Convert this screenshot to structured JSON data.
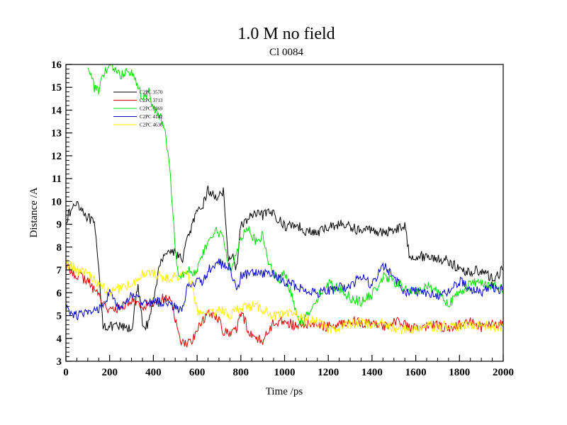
{
  "chart_data": {
    "type": "line",
    "title": "1.0 M no field",
    "subtitle": "Cl 0084",
    "xlabel": "Time /ps",
    "ylabel": "Distance /A",
    "xlim": [
      0,
      2000
    ],
    "ylim": [
      3,
      16
    ],
    "xticks": [
      0,
      200,
      400,
      600,
      800,
      1000,
      1200,
      1400,
      1600,
      1800,
      2000
    ],
    "yticks": [
      3,
      4,
      5,
      6,
      7,
      8,
      9,
      10,
      11,
      12,
      13,
      14,
      15,
      16
    ],
    "grid": false,
    "legend_position": "top-left",
    "series": [
      {
        "name": "C2PC 3570",
        "color": "#000000",
        "x": [
          0,
          50,
          100,
          130,
          150,
          170,
          200,
          250,
          300,
          330,
          350,
          380,
          420,
          450,
          500,
          530,
          560,
          590,
          620,
          650,
          680,
          720,
          740,
          760,
          780,
          800,
          850,
          900,
          950,
          1000,
          1050,
          1100,
          1150,
          1200,
          1250,
          1300,
          1350,
          1400,
          1450,
          1500,
          1550,
          1570,
          1600,
          1650,
          1700,
          1750,
          1800,
          1850,
          1900,
          1950,
          2000
        ],
        "y": [
          9.2,
          10.0,
          9.3,
          9.0,
          7.0,
          4.6,
          4.5,
          4.5,
          4.4,
          6.3,
          4.6,
          4.6,
          6.8,
          7.8,
          7.8,
          7.4,
          8.5,
          9.3,
          9.7,
          10.5,
          10.2,
          10.4,
          7.6,
          7.6,
          7.1,
          8.9,
          9.4,
          9.4,
          9.5,
          8.9,
          9.0,
          8.7,
          8.6,
          8.9,
          9.0,
          8.9,
          8.7,
          8.8,
          8.6,
          8.8,
          8.9,
          7.7,
          7.6,
          7.6,
          7.5,
          7.4,
          7.0,
          6.9,
          7.0,
          6.6,
          7.0
        ]
      },
      {
        "name": "C2PC 3713",
        "color": "#dd0000",
        "x": [
          0,
          50,
          100,
          150,
          200,
          250,
          300,
          350,
          400,
          450,
          480,
          500,
          520,
          550,
          580,
          620,
          650,
          680,
          700,
          720,
          750,
          780,
          800,
          850,
          900,
          950,
          1000,
          1050,
          1100,
          1150,
          1200,
          1250,
          1300,
          1350,
          1400,
          1450,
          1500,
          1550,
          1600,
          1650,
          1700,
          1750,
          1800,
          1850,
          1900,
          1950,
          2000
        ],
        "y": [
          7.1,
          6.8,
          6.5,
          5.9,
          5.2,
          5.3,
          5.7,
          5.4,
          5.6,
          5.8,
          5.7,
          4.8,
          4.0,
          3.7,
          4.0,
          4.7,
          5.1,
          5.0,
          4.9,
          4.3,
          4.2,
          4.4,
          5.1,
          4.1,
          3.9,
          4.7,
          4.8,
          4.5,
          4.6,
          4.6,
          4.5,
          4.6,
          4.8,
          4.7,
          4.6,
          4.5,
          4.8,
          4.6,
          4.4,
          4.5,
          4.6,
          4.4,
          4.6,
          4.7,
          4.5,
          4.6,
          4.6
        ]
      },
      {
        "name": "C2PC 3869",
        "color": "#00dd00",
        "x": [
          100,
          130,
          150,
          170,
          200,
          230,
          250,
          280,
          300,
          330,
          350,
          380,
          400,
          430,
          450,
          470,
          490,
          500,
          510,
          530,
          560,
          590,
          620,
          650,
          680,
          700,
          720,
          740,
          760,
          800,
          830,
          870,
          900,
          930,
          970,
          1000,
          1030,
          1050,
          1080,
          1100,
          1150,
          1200,
          1250,
          1300,
          1350,
          1400,
          1450,
          1500,
          1550,
          1600,
          1650,
          1700,
          1750,
          1800,
          1850,
          1900,
          1950,
          2000
        ],
        "y": [
          16.0,
          15.0,
          14.8,
          15.5,
          16.0,
          15.8,
          15.5,
          15.8,
          15.7,
          15.0,
          14.5,
          14.8,
          14.0,
          13.8,
          13.2,
          12.0,
          9.5,
          8.0,
          7.0,
          6.8,
          7.1,
          6.8,
          7.5,
          8.2,
          8.7,
          8.6,
          8.4,
          7.4,
          7.1,
          8.4,
          8.9,
          8.2,
          8.5,
          7.2,
          6.5,
          6.8,
          6.0,
          5.3,
          4.6,
          5.0,
          5.8,
          6.4,
          6.2,
          5.8,
          5.6,
          5.9,
          6.7,
          6.5,
          6.2,
          6.0,
          6.3,
          6.1,
          5.5,
          6.0,
          6.4,
          6.5,
          6.3,
          6.1
        ]
      },
      {
        "name": "C2PC 4142",
        "color": "#0000cc",
        "x": [
          0,
          50,
          100,
          150,
          200,
          250,
          300,
          350,
          400,
          450,
          500,
          530,
          560,
          600,
          630,
          660,
          700,
          750,
          780,
          800,
          830,
          850,
          900,
          950,
          1000,
          1050,
          1100,
          1150,
          1200,
          1250,
          1300,
          1350,
          1400,
          1450,
          1500,
          1550,
          1600,
          1650,
          1700,
          1750,
          1800,
          1850,
          1900,
          1950,
          2000
        ],
        "y": [
          5.3,
          5.0,
          5.1,
          5.3,
          6.0,
          5.2,
          6.0,
          5.5,
          5.6,
          5.6,
          5.4,
          5.2,
          6.4,
          6.5,
          6.5,
          7.1,
          7.3,
          7.1,
          6.1,
          6.7,
          6.8,
          6.9,
          6.8,
          6.8,
          6.5,
          6.3,
          6.1,
          6.0,
          6.1,
          6.2,
          6.3,
          6.7,
          6.3,
          7.2,
          6.7,
          6.0,
          6.1,
          6.0,
          5.8,
          6.1,
          6.5,
          6.2,
          6.0,
          6.3,
          6.1
        ]
      },
      {
        "name": "C2PC 4636",
        "color": "#ffee00",
        "x": [
          0,
          50,
          100,
          150,
          200,
          250,
          300,
          350,
          400,
          450,
          500,
          550,
          580,
          600,
          650,
          700,
          750,
          800,
          850,
          900,
          950,
          1000,
          1050,
          1100,
          1150,
          1200,
          1250,
          1300,
          1350,
          1400,
          1450,
          1500,
          1550,
          1600,
          1650,
          1700,
          1750,
          1800,
          1850,
          1900,
          1950,
          2000
        ],
        "y": [
          7.3,
          7.0,
          6.8,
          6.4,
          6.0,
          6.2,
          6.4,
          6.8,
          6.9,
          6.6,
          6.7,
          6.8,
          6.3,
          5.2,
          5.0,
          5.3,
          5.0,
          5.4,
          5.4,
          5.3,
          5.0,
          5.0,
          5.1,
          4.8,
          4.7,
          4.4,
          4.5,
          4.6,
          4.7,
          4.6,
          4.7,
          4.4,
          4.4,
          4.4,
          4.6,
          4.5,
          4.6,
          4.5,
          4.6,
          4.6,
          4.5,
          4.5
        ]
      }
    ]
  }
}
